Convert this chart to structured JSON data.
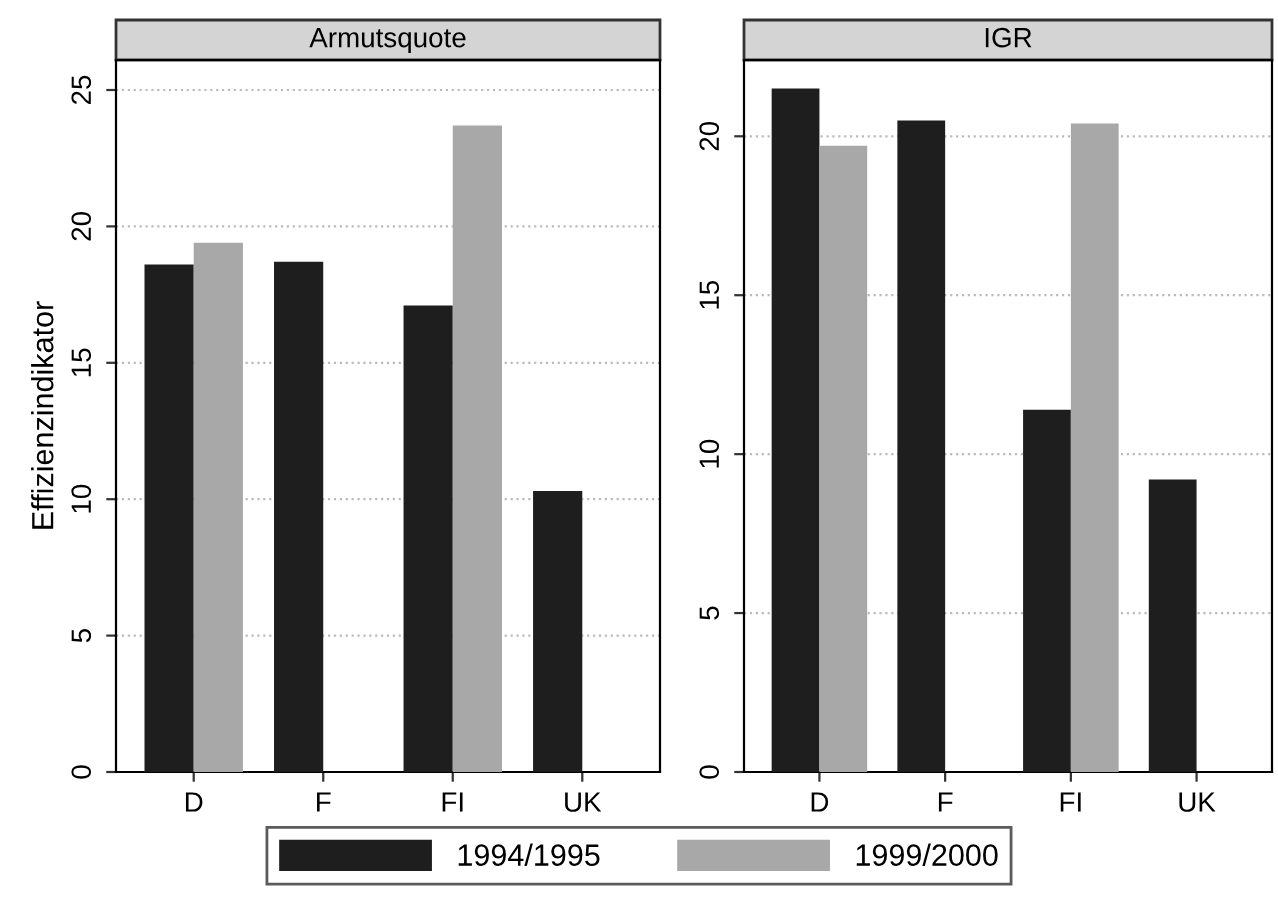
{
  "chart_data": [
    {
      "type": "bar",
      "title": "Armutsquote",
      "ylabel": "Effizienzindikator",
      "categories": [
        "D",
        "F",
        "FI",
        "UK"
      ],
      "series": [
        {
          "name": "1994/1995",
          "color": "#1e1e1e",
          "values": [
            18.6,
            18.7,
            17.1,
            10.3
          ]
        },
        {
          "name": "1999/2000",
          "color": "#a8a8a8",
          "values": [
            19.4,
            null,
            23.7,
            null
          ]
        }
      ],
      "ylim": [
        0,
        26.1
      ],
      "yticks": [
        0,
        5,
        10,
        15,
        20,
        25
      ],
      "grid": "y",
      "legend": "bottom"
    },
    {
      "type": "bar",
      "title": "IGR",
      "categories": [
        "D",
        "F",
        "FI",
        "UK"
      ],
      "series": [
        {
          "color": "#1e1e1e",
          "values": [
            21.5,
            20.5,
            11.4,
            9.2
          ]
        },
        {
          "color": "#a8a8a8",
          "values": [
            19.7,
            null,
            20.4,
            null
          ]
        }
      ],
      "ylim": [
        0,
        22.4
      ],
      "yticks": [
        0,
        5,
        10,
        15,
        20
      ],
      "grid": "y"
    }
  ]
}
